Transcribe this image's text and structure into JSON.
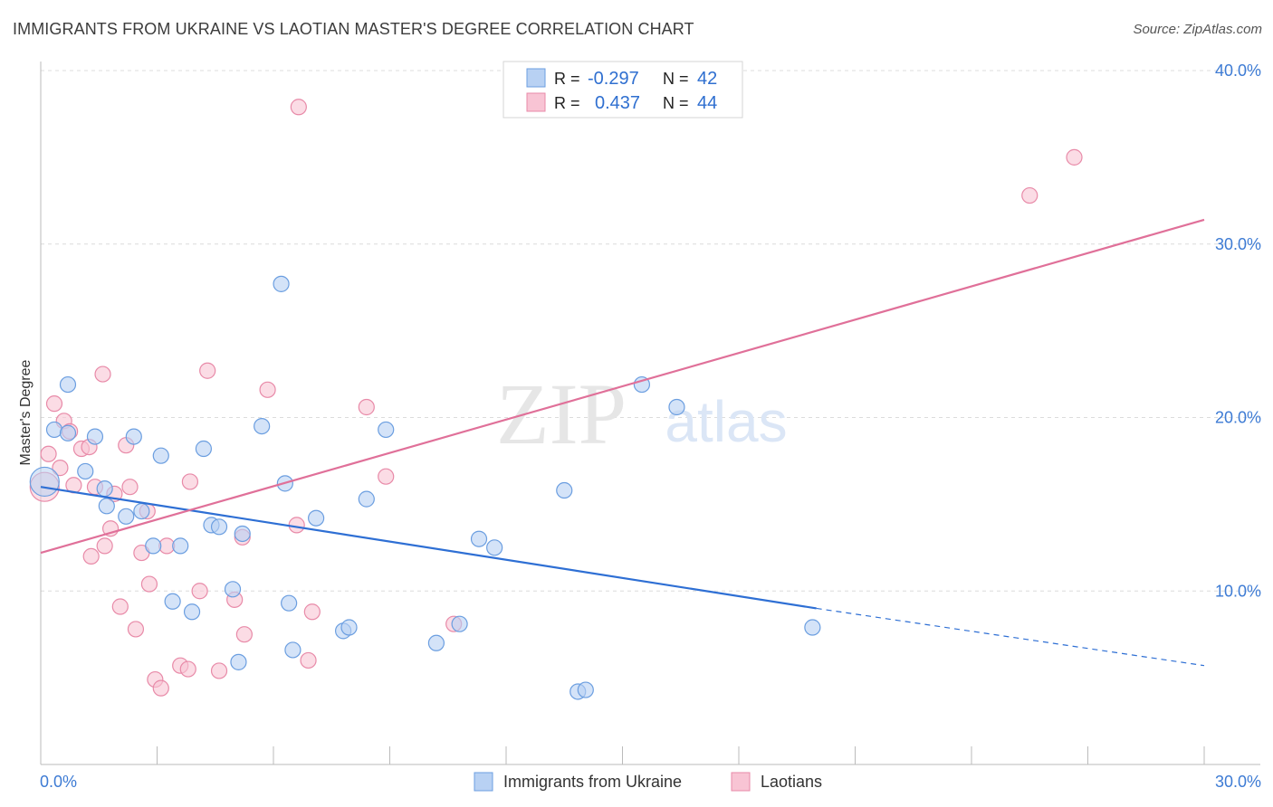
{
  "title": "IMMIGRANTS FROM UKRAINE VS LAOTIAN MASTER'S DEGREE CORRELATION CHART",
  "source": "Source: ZipAtlas.com",
  "watermark": {
    "zip": "ZIP",
    "atlas": "atlas"
  },
  "colors": {
    "blue_fill": "#b8d1f3",
    "blue_stroke": "#6b9ee0",
    "blue_line": "#2e6fd4",
    "pink_fill": "#f8c4d4",
    "pink_stroke": "#e88aa8",
    "pink_line": "#e07099",
    "grid": "#dcdcdc",
    "axis_text": "#3d7bd4"
  },
  "legend": {
    "rows": [
      {
        "r_label": "R =",
        "r_value": "-0.297",
        "n_label": "N =",
        "n_value": "42"
      },
      {
        "r_label": "R =",
        "r_value": "0.437",
        "n_label": "N =",
        "n_value": "44"
      }
    ]
  },
  "bottom_legend": [
    "Immigrants from Ukraine",
    "Laotians"
  ],
  "chart_data": {
    "type": "scatter",
    "title": "IMMIGRANTS FROM UKRAINE VS LAOTIAN MASTER'S DEGREE CORRELATION CHART",
    "ylabel": "Master's Degree",
    "xlabel": "",
    "xlim": [
      0,
      30
    ],
    "ylim": [
      0,
      40
    ],
    "x_tick_labels": [
      "0.0%",
      "30.0%"
    ],
    "y_tick_labels": [
      "10.0%",
      "20.0%",
      "30.0%",
      "40.0%"
    ],
    "y_ticks": [
      10,
      20,
      30,
      40
    ],
    "grid": true,
    "legend_position": "top-center",
    "series": [
      {
        "name": "Immigrants from Ukraine",
        "R": -0.297,
        "N": 42,
        "trend": {
          "x0": 0,
          "y0": 16.0,
          "x1": 20.0,
          "y1": 9.0,
          "dash_to_x": 30,
          "dash_to_y": 5.7
        },
        "points": [
          [
            0.1,
            16.3
          ],
          [
            0.35,
            19.3
          ],
          [
            0.7,
            21.9
          ],
          [
            0.7,
            19.1
          ],
          [
            1.15,
            16.9
          ],
          [
            1.4,
            18.9
          ],
          [
            1.65,
            15.9
          ],
          [
            1.7,
            14.9
          ],
          [
            2.2,
            14.3
          ],
          [
            2.4,
            18.9
          ],
          [
            2.6,
            14.6
          ],
          [
            2.9,
            12.6
          ],
          [
            3.1,
            17.8
          ],
          [
            3.4,
            9.4
          ],
          [
            3.6,
            12.6
          ],
          [
            3.9,
            8.8
          ],
          [
            4.2,
            18.2
          ],
          [
            4.4,
            13.8
          ],
          [
            4.6,
            13.7
          ],
          [
            4.95,
            10.1
          ],
          [
            5.1,
            5.9
          ],
          [
            5.2,
            13.3
          ],
          [
            5.7,
            19.5
          ],
          [
            6.2,
            27.7
          ],
          [
            6.3,
            16.2
          ],
          [
            6.4,
            9.3
          ],
          [
            6.5,
            6.6
          ],
          [
            7.1,
            14.2
          ],
          [
            7.8,
            7.7
          ],
          [
            7.95,
            7.9
          ],
          [
            8.4,
            15.3
          ],
          [
            8.9,
            19.3
          ],
          [
            10.2,
            7.0
          ],
          [
            10.8,
            8.1
          ],
          [
            11.3,
            13.0
          ],
          [
            11.7,
            12.5
          ],
          [
            13.5,
            15.8
          ],
          [
            13.85,
            4.2
          ],
          [
            14.05,
            4.3
          ],
          [
            15.5,
            21.9
          ],
          [
            16.4,
            20.6
          ],
          [
            19.9,
            7.9
          ]
        ]
      },
      {
        "name": "Laotians",
        "R": 0.437,
        "N": 44,
        "trend": {
          "x0": 0,
          "y0": 12.2,
          "x1": 30,
          "y1": 31.4
        },
        "points": [
          [
            0.1,
            16.0
          ],
          [
            0.2,
            17.9
          ],
          [
            0.35,
            20.8
          ],
          [
            0.5,
            17.1
          ],
          [
            0.6,
            19.8
          ],
          [
            0.75,
            19.2
          ],
          [
            0.85,
            16.1
          ],
          [
            1.05,
            18.2
          ],
          [
            1.25,
            18.3
          ],
          [
            1.3,
            12.0
          ],
          [
            1.4,
            16.0
          ],
          [
            1.6,
            22.5
          ],
          [
            1.65,
            12.6
          ],
          [
            1.8,
            13.6
          ],
          [
            1.9,
            15.6
          ],
          [
            2.05,
            9.1
          ],
          [
            2.2,
            18.4
          ],
          [
            2.3,
            16.0
          ],
          [
            2.45,
            7.8
          ],
          [
            2.6,
            12.2
          ],
          [
            2.75,
            14.6
          ],
          [
            2.8,
            10.4
          ],
          [
            2.95,
            4.9
          ],
          [
            3.1,
            4.4
          ],
          [
            3.25,
            12.6
          ],
          [
            3.6,
            5.7
          ],
          [
            3.8,
            5.5
          ],
          [
            3.85,
            16.3
          ],
          [
            4.1,
            10.0
          ],
          [
            4.3,
            22.7
          ],
          [
            4.6,
            5.4
          ],
          [
            5.0,
            9.5
          ],
          [
            5.2,
            13.1
          ],
          [
            5.25,
            7.5
          ],
          [
            5.85,
            21.6
          ],
          [
            6.65,
            37.9
          ],
          [
            6.6,
            13.8
          ],
          [
            6.9,
            6.0
          ],
          [
            7.0,
            8.8
          ],
          [
            8.4,
            20.6
          ],
          [
            8.9,
            16.6
          ],
          [
            10.65,
            8.1
          ],
          [
            25.5,
            32.8
          ],
          [
            26.65,
            35.0
          ]
        ]
      }
    ]
  }
}
